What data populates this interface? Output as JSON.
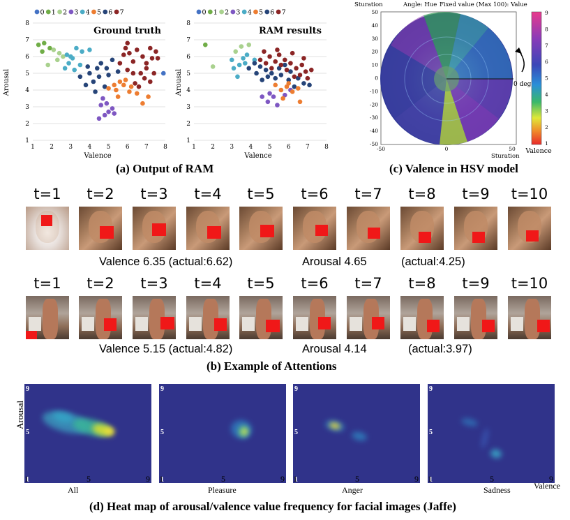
{
  "legend_ids": [
    "0",
    "1",
    "2",
    "3",
    "4",
    "5",
    "6",
    "7"
  ],
  "palette": [
    "#4472c4",
    "#70ad47",
    "#a9d18e",
    "#7e57c2",
    "#4bacc6",
    "#ed7d31",
    "#264478",
    "#8b2525"
  ],
  "panel_a": {
    "caption": "(a) Output of RAM",
    "left_title": "Ground truth",
    "right_title": "RAM results",
    "ylabel": "Arousal",
    "xlabel": "Valence",
    "ticks": [
      "1",
      "2",
      "3",
      "4",
      "5",
      "6",
      "7",
      "8"
    ]
  },
  "chart_data": [
    {
      "type": "scatter",
      "title": "Ground truth",
      "xlabel": "Valence",
      "ylabel": "Arousal",
      "xlim": [
        1,
        8
      ],
      "ylim": [
        1,
        8
      ],
      "series": [
        {
          "name": "1",
          "points": [
            [
              1.3,
              6.7
            ],
            [
              1.6,
              6.8
            ],
            [
              1.9,
              6.5
            ],
            [
              1.5,
              6.3
            ]
          ]
        },
        {
          "name": "2",
          "points": [
            [
              2.1,
              6.4
            ],
            [
              2.4,
              6.2
            ],
            [
              1.8,
              5.5
            ],
            [
              2.6,
              6.0
            ],
            [
              2.3,
              5.8
            ]
          ]
        },
        {
          "name": "4",
          "points": [
            [
              2.8,
              6.1
            ],
            [
              3.1,
              5.9
            ],
            [
              3.3,
              6.5
            ],
            [
              3.6,
              6.3
            ],
            [
              2.9,
              5.6
            ],
            [
              3.2,
              5.2
            ],
            [
              3.5,
              5.5
            ],
            [
              2.7,
              5.3
            ],
            [
              3.0,
              6.0
            ],
            [
              4.0,
              6.4
            ]
          ]
        },
        {
          "name": "6",
          "points": [
            [
              3.5,
              4.8
            ],
            [
              4.0,
              5.0
            ],
            [
              4.2,
              4.5
            ],
            [
              3.8,
              4.3
            ],
            [
              4.5,
              4.8
            ],
            [
              4.9,
              5.3
            ],
            [
              5.2,
              5.8
            ],
            [
              4.6,
              5.6
            ],
            [
              4.3,
              3.9
            ],
            [
              5.0,
              4.9
            ],
            [
              4.8,
              4.2
            ],
            [
              5.5,
              5.1
            ],
            [
              3.9,
              5.4
            ],
            [
              4.4,
              5.3
            ]
          ]
        },
        {
          "name": "3",
          "points": [
            [
              4.6,
              3.1
            ],
            [
              4.9,
              3.2
            ],
            [
              5.0,
              2.7
            ],
            [
              5.2,
              2.9
            ],
            [
              4.8,
              2.5
            ],
            [
              4.5,
              2.3
            ],
            [
              5.3,
              2.6
            ],
            [
              4.7,
              3.5
            ]
          ]
        },
        {
          "name": "5",
          "points": [
            [
              5.0,
              4.1
            ],
            [
              5.3,
              4.3
            ],
            [
              5.6,
              4.5
            ],
            [
              5.9,
              4.6
            ],
            [
              6.2,
              4.2
            ],
            [
              6.5,
              3.8
            ],
            [
              5.5,
              3.6
            ],
            [
              6.8,
              3.2
            ],
            [
              5.8,
              4.3
            ],
            [
              6.1,
              3.9
            ],
            [
              7.1,
              3.6
            ],
            [
              5.4,
              4.0
            ]
          ]
        },
        {
          "name": "7",
          "points": [
            [
              5.6,
              5.6
            ],
            [
              5.9,
              6.5
            ],
            [
              6.0,
              6.8
            ],
            [
              6.3,
              5.7
            ],
            [
              6.5,
              6.4
            ],
            [
              6.8,
              6.0
            ],
            [
              7.0,
              5.6
            ],
            [
              7.3,
              5.9
            ],
            [
              6.7,
              5.0
            ],
            [
              6.9,
              4.7
            ],
            [
              7.2,
              4.5
            ],
            [
              6.4,
              4.4
            ],
            [
              7.5,
              6.3
            ],
            [
              6.0,
              5.2
            ],
            [
              6.3,
              5.0
            ],
            [
              7.0,
              5.3
            ],
            [
              7.2,
              6.5
            ],
            [
              6.6,
              4.2
            ],
            [
              7.4,
              5.0
            ],
            [
              5.8,
              6.1
            ],
            [
              6.1,
              6.2
            ],
            [
              7.6,
              5.9
            ]
          ]
        },
        {
          "name": "0",
          "points": [
            [
              7.9,
              5.0
            ]
          ]
        }
      ]
    },
    {
      "type": "scatter",
      "title": "RAM results",
      "xlabel": "Valence",
      "ylabel": "Arousal",
      "xlim": [
        1,
        8
      ],
      "ylim": [
        1,
        8
      ],
      "series": [
        {
          "name": "1",
          "points": [
            [
              1.6,
              6.7
            ]
          ]
        },
        {
          "name": "2",
          "points": [
            [
              2.0,
              5.4
            ],
            [
              3.2,
              6.3
            ],
            [
              3.5,
              6.6
            ],
            [
              3.9,
              6.7
            ]
          ]
        },
        {
          "name": "4",
          "points": [
            [
              3.0,
              5.8
            ],
            [
              3.1,
              5.3
            ],
            [
              3.4,
              5.5
            ],
            [
              3.6,
              5.9
            ],
            [
              3.3,
              4.8
            ],
            [
              3.8,
              6.1
            ],
            [
              3.7,
              5.6
            ],
            [
              4.2,
              5.8
            ]
          ]
        },
        {
          "name": "6",
          "points": [
            [
              3.9,
              5.3
            ],
            [
              4.2,
              5.6
            ],
            [
              4.5,
              5.4
            ],
            [
              4.8,
              5.2
            ],
            [
              5.1,
              5.0
            ],
            [
              4.6,
              4.6
            ],
            [
              5.3,
              4.7
            ],
            [
              5.6,
              4.9
            ],
            [
              6.0,
              4.6
            ],
            [
              6.3,
              4.2
            ],
            [
              5.8,
              5.5
            ],
            [
              4.3,
              5.0
            ],
            [
              6.8,
              4.4
            ],
            [
              6.5,
              4.7
            ],
            [
              5.5,
              5.3
            ],
            [
              7.1,
              4.3
            ],
            [
              4.9,
              4.8
            ],
            [
              6.1,
              5.1
            ]
          ]
        },
        {
          "name": "3",
          "points": [
            [
              4.6,
              3.6
            ],
            [
              4.9,
              3.3
            ],
            [
              5.2,
              3.6
            ],
            [
              5.4,
              3.1
            ],
            [
              5.0,
              3.8
            ],
            [
              5.8,
              3.7
            ],
            [
              6.1,
              4.0
            ]
          ]
        },
        {
          "name": "5",
          "points": [
            [
              5.3,
              4.3
            ],
            [
              5.6,
              4.0
            ],
            [
              5.9,
              4.2
            ],
            [
              6.2,
              3.9
            ],
            [
              6.5,
              4.1
            ],
            [
              5.7,
              3.5
            ],
            [
              6.6,
              3.3
            ],
            [
              6.0,
              4.4
            ]
          ]
        },
        {
          "name": "7",
          "points": [
            [
              4.5,
              5.8
            ],
            [
              4.8,
              5.6
            ],
            [
              5.0,
              6.0
            ],
            [
              5.3,
              5.7
            ],
            [
              5.5,
              6.1
            ],
            [
              5.8,
              5.8
            ],
            [
              6.1,
              5.6
            ],
            [
              6.4,
              5.3
            ],
            [
              6.7,
              5.5
            ],
            [
              6.9,
              5.1
            ],
            [
              5.9,
              5.2
            ],
            [
              6.3,
              4.8
            ],
            [
              6.6,
              4.9
            ],
            [
              7.0,
              4.7
            ],
            [
              4.7,
              6.3
            ],
            [
              5.1,
              5.3
            ],
            [
              5.6,
              5.5
            ],
            [
              6.8,
              5.9
            ],
            [
              5.4,
              6.4
            ],
            [
              6.2,
              6.2
            ],
            [
              7.2,
              5.2
            ]
          ]
        }
      ]
    }
  ],
  "panel_c": {
    "caption": "(c) Valence in HSV model",
    "top_left": "Sturation",
    "top_mid": "Angle: Hue",
    "top_right": "Fixed value (Max 100): Value",
    "bottom_right": "Sturation",
    "zero_deg": "0 deg",
    "yticks": [
      "50",
      "40",
      "30",
      "20",
      "10",
      "0",
      "-10",
      "-20",
      "-30",
      "-40",
      "-50"
    ],
    "xticks": [
      "-50",
      "0",
      "50"
    ],
    "colorbar_ticks": [
      "9",
      "8",
      "7",
      "6",
      "5",
      "4",
      "3",
      "2",
      "1"
    ],
    "colorbar_label": "Valence"
  },
  "panel_b": {
    "caption": "(b) Example of Attentions",
    "steps": [
      "t=1",
      "t=2",
      "t=3",
      "t=4",
      "t=5",
      "t=6",
      "t=7",
      "t=8",
      "t=9",
      "t=10"
    ],
    "row1": {
      "valence": "Valence 6.35 (actual:6.62)",
      "arousal": "Arousal 4.65",
      "actual": "(actual:4.25)"
    },
    "row2": {
      "valence": "Valence 5.15 (actual:4.82)",
      "arousal": "Arousal 4.14",
      "actual": "(actual:3.97)"
    }
  },
  "panel_d": {
    "caption": "(d) Heat map of arousal/valence value frequency for facial images (Jaffe)",
    "ylabel": "Arousal",
    "xlabel_right": "Valence",
    "tick_min": "1",
    "tick_mid": "5",
    "tick_max": "9",
    "maps": [
      "All",
      "Pleasure",
      "Anger",
      "Sadness"
    ]
  }
}
